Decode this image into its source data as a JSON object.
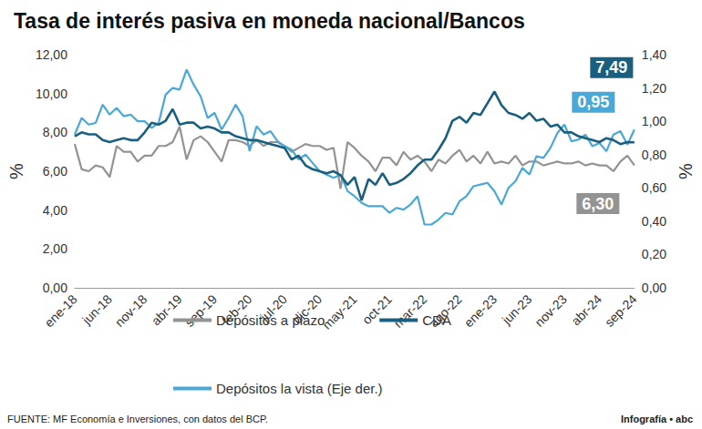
{
  "chart_data": {
    "type": "line",
    "title": "Tasa de interés pasiva en moneda nacional/Bancos",
    "y_label": "%",
    "y2_label": "%",
    "source": "FUENTE: MF Economía e Inversiones, con datos del BCP.",
    "credit": "Infografía • abc",
    "grid": false,
    "legend": "bottom",
    "categories": [
      "ene-18",
      null,
      null,
      null,
      null,
      "jun-18",
      null,
      null,
      null,
      null,
      "nov-18",
      null,
      null,
      null,
      null,
      "abr-19",
      null,
      null,
      null,
      null,
      "sep-19",
      null,
      null,
      null,
      null,
      "feb-20",
      null,
      null,
      null,
      null,
      "jul-20",
      null,
      null,
      null,
      null,
      "dic-20",
      null,
      null,
      null,
      null,
      "may-21",
      null,
      null,
      null,
      null,
      "oct-21",
      null,
      null,
      null,
      null,
      "mar-22",
      null,
      null,
      null,
      null,
      "ago-22",
      null,
      null,
      null,
      null,
      "ene-23",
      null,
      null,
      null,
      null,
      "jun-23",
      null,
      null,
      null,
      null,
      "nov-23",
      null,
      null,
      null,
      null,
      "abr-24",
      null,
      null,
      null,
      null,
      "sep-24"
    ],
    "ylim": [
      0,
      12
    ],
    "yticks": [
      {
        "value": 0,
        "label": "0,00"
      },
      {
        "value": 2,
        "label": "2,00"
      },
      {
        "value": 4,
        "label": "4,00"
      },
      {
        "value": 6,
        "label": "6,00"
      },
      {
        "value": 8,
        "label": "8,00"
      },
      {
        "value": 10,
        "label": "10,00"
      },
      {
        "value": 12,
        "label": "12,00"
      }
    ],
    "y2lim": [
      0,
      1.4
    ],
    "y2ticks": [
      {
        "value": 0,
        "label": "0,00"
      },
      {
        "value": 0.2,
        "label": "0,20"
      },
      {
        "value": 0.4,
        "label": "0,40"
      },
      {
        "value": 0.6,
        "label": "0,60"
      },
      {
        "value": 0.8,
        "label": "0,80"
      },
      {
        "value": 1,
        "label": "1,00"
      },
      {
        "value": 1.2,
        "label": "1,20"
      },
      {
        "value": 1.4,
        "label": "1,40"
      }
    ],
    "series": [
      {
        "name": "Depósitos a plazo",
        "color": "#939393",
        "axis": "y",
        "values": [
          7.4,
          6.1,
          6.0,
          6.3,
          6.2,
          5.7,
          7.3,
          7.0,
          7.0,
          6.5,
          6.8,
          6.8,
          7.3,
          7.3,
          7.5,
          8.3,
          6.6,
          7.6,
          7.8,
          7.5,
          7.0,
          6.5,
          7.6,
          7.6,
          7.5,
          7.3,
          7.6,
          7.3,
          7.5,
          7.5,
          7.3,
          7.0,
          7.2,
          7.4,
          7.3,
          7.3,
          7.1,
          7.2,
          5.1,
          7.5,
          7.2,
          6.8,
          6.5,
          6.0,
          6.7,
          6.7,
          6.3,
          7.0,
          6.6,
          6.8,
          6.5,
          6.0,
          6.6,
          6.4,
          6.8,
          7.1,
          6.5,
          6.8,
          6.4,
          7.0,
          6.4,
          6.5,
          6.4,
          6.8,
          6.3,
          6.5,
          6.5,
          6.3,
          6.4,
          6.5,
          6.4,
          6.4,
          6.5,
          6.3,
          6.4,
          6.3,
          6.3,
          6.0,
          6.5,
          6.8,
          6.3
        ]
      },
      {
        "name": "CDA",
        "color": "#1a5f80",
        "axis": "y",
        "values": [
          7.8,
          8.0,
          7.9,
          7.9,
          7.6,
          7.5,
          7.6,
          7.7,
          7.6,
          7.6,
          8.0,
          8.5,
          8.4,
          8.6,
          9.2,
          8.4,
          8.5,
          8.5,
          8.2,
          8.3,
          8.2,
          8.0,
          8.0,
          7.8,
          7.7,
          7.6,
          7.6,
          7.5,
          7.4,
          7.3,
          7.2,
          6.6,
          6.8,
          6.3,
          6.1,
          6.0,
          5.9,
          6.0,
          5.8,
          5.3,
          5.7,
          4.5,
          5.6,
          5.3,
          5.9,
          5.3,
          5.4,
          5.6,
          5.9,
          6.3,
          6.6,
          6.6,
          7.1,
          7.7,
          8.6,
          8.8,
          8.5,
          9.0,
          8.9,
          9.5,
          10.1,
          9.4,
          9.0,
          8.9,
          8.7,
          9.0,
          8.6,
          8.7,
          8.3,
          8.4,
          8.0,
          8.0,
          7.8,
          7.7,
          7.6,
          7.5,
          7.7,
          7.6,
          7.4,
          7.5,
          7.49
        ]
      },
      {
        "name": "Depósitos la vista (Eje der.)",
        "color": "#4aa8d8",
        "axis": "y2",
        "values": [
          0.92,
          1.02,
          0.98,
          0.99,
          1.1,
          1.04,
          1.08,
          1.03,
          1.04,
          1.0,
          1.0,
          0.96,
          0.99,
          1.16,
          1.2,
          1.19,
          1.31,
          1.22,
          1.15,
          1.02,
          1.05,
          0.95,
          1.02,
          1.1,
          1.03,
          0.82,
          0.97,
          0.92,
          0.94,
          0.88,
          0.85,
          0.83,
          0.77,
          0.8,
          0.75,
          0.7,
          0.68,
          0.66,
          0.68,
          0.58,
          0.55,
          0.51,
          0.49,
          0.49,
          0.49,
          0.45,
          0.48,
          0.47,
          0.5,
          0.55,
          0.38,
          0.38,
          0.41,
          0.45,
          0.44,
          0.52,
          0.55,
          0.61,
          0.62,
          0.63,
          0.58,
          0.5,
          0.6,
          0.64,
          0.72,
          0.68,
          0.79,
          0.78,
          0.84,
          0.93,
          0.98,
          0.88,
          0.89,
          0.92,
          0.85,
          0.87,
          0.82,
          0.92,
          0.94,
          0.86,
          0.95
        ]
      }
    ],
    "annotations": [
      {
        "series": "CDA",
        "label": "7,49"
      },
      {
        "series": "Depósitos la vista (Eje der.)",
        "label": "0,95"
      },
      {
        "series": "Depósitos a plazo",
        "label": "6,30"
      }
    ]
  }
}
